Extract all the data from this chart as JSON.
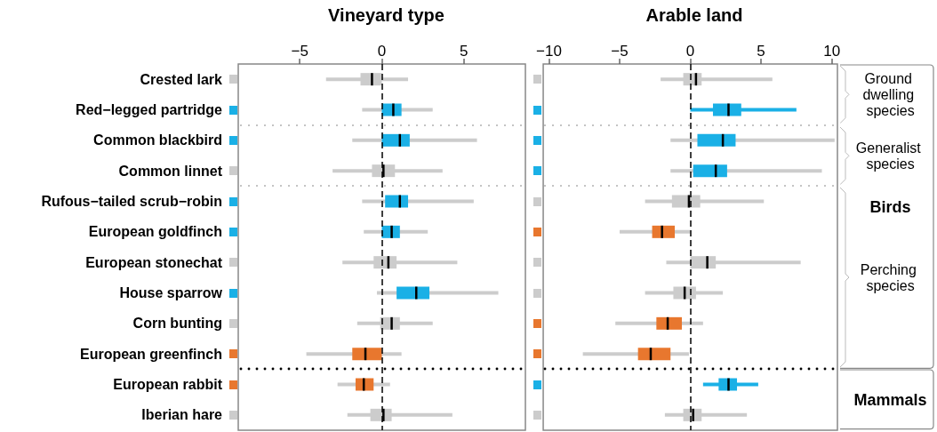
{
  "chart_data": [
    {
      "type": "box",
      "orientation": "horizontal",
      "title": "Vineyard type",
      "categories": [
        "Crested lark",
        "Red−legged partridge",
        "Common blackbird",
        "Common linnet",
        "Rufous−tailed scrub−robin",
        "European goldfinch",
        "European stonechat",
        "House sparrow",
        "Corn bunting",
        "European greenfinch",
        "European rabbit",
        "Iberian hare"
      ],
      "xlim": [
        -8.75,
        8.75
      ],
      "xticks": [
        -5,
        0,
        5
      ],
      "grid": false,
      "series": [
        {
          "color": "#cccccc",
          "colors": [
            "#cccccc",
            "#1ab0e6",
            "#1ab0e6",
            "#cccccc",
            "#1ab0e6",
            "#1ab0e6",
            "#cccccc",
            "#1ab0e6",
            "#cccccc",
            "#e8772e",
            "#e8772e",
            "#cccccc"
          ],
          "boxes": [
            {
              "low": -3.4,
              "q1": -1.3,
              "median": -0.6,
              "q3": 0.0,
              "high": 1.6
            },
            {
              "low": -1.2,
              "q1": 0.0,
              "median": 0.7,
              "q3": 1.2,
              "high": 3.1
            },
            {
              "low": -1.8,
              "q1": 0.0,
              "median": 1.1,
              "q3": 1.7,
              "high": 5.8
            },
            {
              "low": -3.0,
              "q1": -0.6,
              "median": 0.1,
              "q3": 0.8,
              "high": 3.7
            },
            {
              "low": -1.2,
              "q1": 0.2,
              "median": 1.1,
              "q3": 1.6,
              "high": 5.6
            },
            {
              "low": -1.1,
              "q1": 0.0,
              "median": 0.6,
              "q3": 1.1,
              "high": 2.8
            },
            {
              "low": -2.4,
              "q1": -0.5,
              "median": 0.4,
              "q3": 0.9,
              "high": 4.6
            },
            {
              "low": -0.3,
              "q1": 0.9,
              "median": 2.1,
              "q3": 2.9,
              "high": 7.1
            },
            {
              "low": -1.5,
              "q1": -0.1,
              "median": 0.6,
              "q3": 1.1,
              "high": 3.1
            },
            {
              "low": -4.6,
              "q1": -1.8,
              "median": -1.0,
              "q3": 0.0,
              "high": 1.2
            },
            {
              "low": -2.7,
              "q1": -1.6,
              "median": -1.1,
              "q3": -0.5,
              "high": 0.5
            },
            {
              "low": -2.1,
              "q1": -0.7,
              "median": 0.1,
              "q3": 0.6,
              "high": 4.3
            }
          ]
        }
      ],
      "ref_lines": [
        {
          "axis": "x",
          "value": 0,
          "color": "#000000",
          "line_style": "dashed"
        }
      ]
    },
    {
      "type": "box",
      "orientation": "horizontal",
      "title": "Arable land",
      "categories": [
        null,
        null,
        null,
        null,
        null,
        null,
        null,
        null,
        null,
        null,
        null,
        null
      ],
      "tick_labels": "x",
      "xlim": [
        -10.4,
        10.4
      ],
      "xticks": [
        -10,
        -5,
        0,
        5,
        10
      ],
      "grid": false,
      "series": [
        {
          "color": "#cccccc",
          "colors": [
            "#cccccc",
            null,
            "#1ab0e6",
            "#1ab0e6",
            "#cccccc",
            "#e8772e",
            "#cccccc",
            "#cccccc",
            "#e8772e",
            "#e8772e",
            null,
            "#cccccc"
          ],
          "boxes": [
            {
              "low": -2.1,
              "q1": -0.5,
              "median": 0.4,
              "q3": 0.8,
              "high": 5.8
            },
            null,
            {
              "low": -1.4,
              "q1": 0.5,
              "median": 2.3,
              "q3": 3.2,
              "high": 10.2
            },
            {
              "low": -1.4,
              "q1": 0.2,
              "median": 1.8,
              "q3": 2.6,
              "high": 9.3
            },
            {
              "low": -3.2,
              "q1": -1.3,
              "median": -0.1,
              "q3": 0.7,
              "high": 5.2
            },
            {
              "low": -5.0,
              "q1": -2.7,
              "median": -2.0,
              "q3": -1.1,
              "high": 0.0
            },
            {
              "low": -1.7,
              "q1": 0.0,
              "median": 1.2,
              "q3": 1.8,
              "high": 7.8
            },
            {
              "low": -3.2,
              "q1": -1.2,
              "median": -0.4,
              "q3": 0.4,
              "high": 2.3
            },
            {
              "low": -5.3,
              "q1": -2.4,
              "median": -1.6,
              "q3": -0.6,
              "high": 0.9
            },
            {
              "low": -7.6,
              "q1": -3.7,
              "median": -2.8,
              "q3": -1.4,
              "high": -0.1
            },
            null,
            {
              "low": -1.8,
              "q1": -0.5,
              "median": 0.2,
              "q3": 0.8,
              "high": 4.0
            }
          ]
        },
        {
          "color": "#1ab0e6",
          "colors": [
            null,
            "#1ab0e6",
            null,
            null,
            null,
            null,
            null,
            null,
            null,
            null,
            "#1ab0e6",
            null
          ],
          "boxes": [
            null,
            {
              "low": 0.0,
              "q1": 1.6,
              "median": 2.7,
              "q3": 3.6,
              "high": 7.5
            },
            null,
            null,
            null,
            null,
            null,
            null,
            null,
            null,
            {
              "low": 0.9,
              "q1": 2.0,
              "median": 2.7,
              "q3": 3.3,
              "high": 4.8
            },
            null
          ]
        }
      ],
      "ref_lines": [
        {
          "axis": "x",
          "value": 0,
          "color": "#000000",
          "line_style": "dashed"
        }
      ],
      "annotations": [
        "Ground dwelling species",
        "Generalist species",
        "Birds",
        "Perching species",
        "Mammals"
      ]
    }
  ]
}
